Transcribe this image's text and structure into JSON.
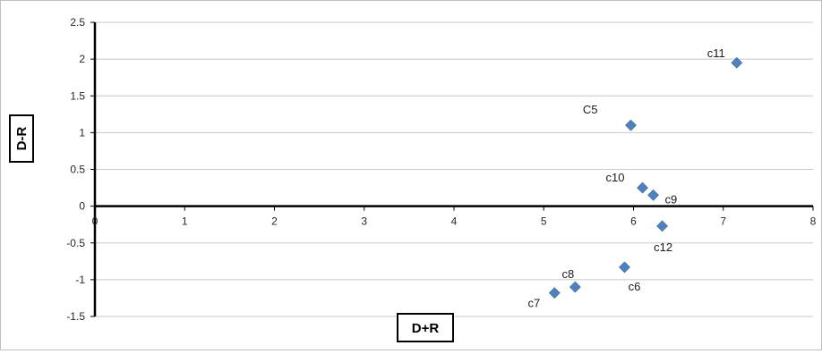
{
  "chart_data": {
    "type": "scatter",
    "xlabel": "D+R",
    "ylabel": "D-R",
    "xlim": [
      0,
      8
    ],
    "ylim": [
      -1.5,
      2.5
    ],
    "x_ticks": [
      "0",
      "1",
      "2",
      "3",
      "4",
      "5",
      "6",
      "7",
      "8"
    ],
    "y_ticks": [
      "2.5",
      "2",
      "1.5",
      "1",
      "0.5",
      "0",
      "-0.5",
      "-1",
      "-1.5"
    ],
    "grid": "horizontal",
    "marker": "diamond",
    "marker_color": "#4f81bd",
    "points": [
      {
        "label": "c11",
        "x": 7.15,
        "y": 1.95
      },
      {
        "label": "C5",
        "x": 5.97,
        "y": 1.1
      },
      {
        "label": "c10",
        "x": 6.1,
        "y": 0.25
      },
      {
        "label": "c9",
        "x": 6.22,
        "y": 0.15
      },
      {
        "label": "c12",
        "x": 6.32,
        "y": -0.27
      },
      {
        "label": "c6",
        "x": 5.9,
        "y": -0.83
      },
      {
        "label": "c8",
        "x": 5.35,
        "y": -1.1
      },
      {
        "label": "c7",
        "x": 5.12,
        "y": -1.18
      }
    ]
  }
}
